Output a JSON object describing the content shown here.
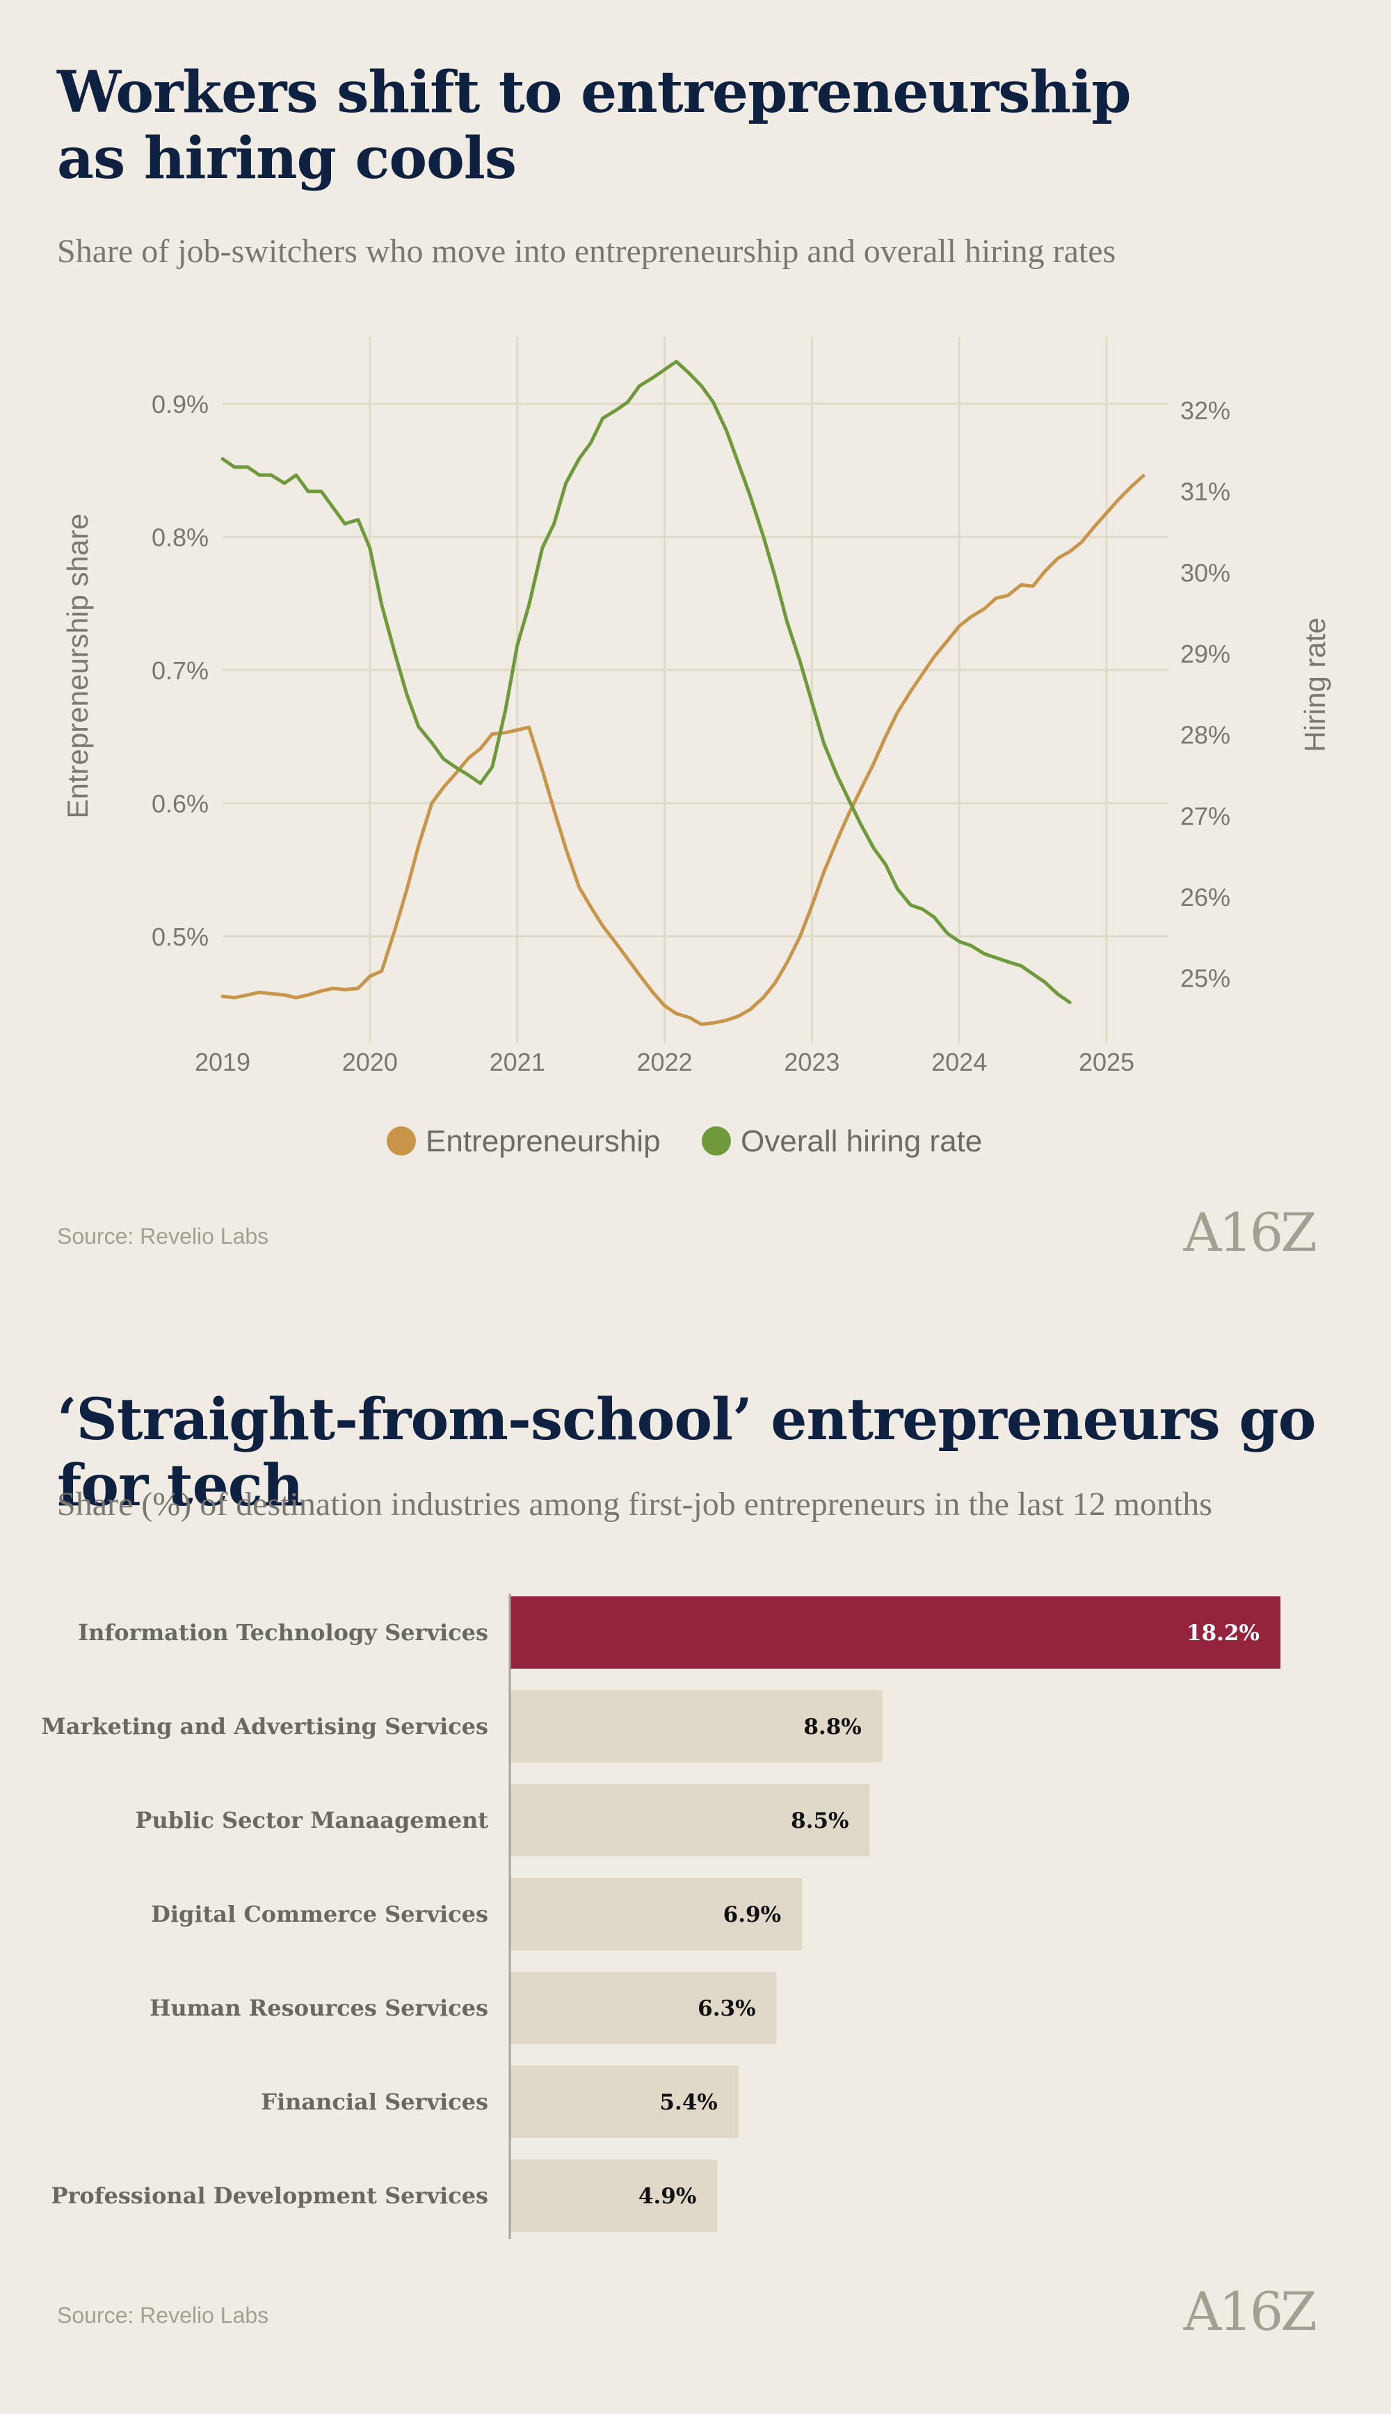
{
  "header": {
    "title1": "Workers shift to entrepreneurship as hiring cools",
    "subtitle1": "Share of job-switchers who move into entrepreneurship and overall hiring rates",
    "title2": "‘Straight-from-school’ entrepreneurs go for tech",
    "subtitle2": "Share (%) of destination industries among first-job entrepreneurs in the last 12 months"
  },
  "footer": {
    "source1": "Source: Revelio Labs",
    "source2": "Source: Revelio Labs",
    "logo": "A16Z"
  },
  "colors": {
    "entrepreneurship": "#c8964a",
    "hiring": "#6f9a3c",
    "highlight_bar": "#94243e",
    "bar": "#e0d8c8",
    "grid": "#e0d9c8"
  },
  "chart_data": [
    {
      "type": "line",
      "title": "Workers shift to entrepreneurship as hiring cools",
      "ylabel_left": "Entrepreneurship share",
      "ylabel_right": "Hiring rate",
      "x_ticks": [
        "2019",
        "2020",
        "2021",
        "2022",
        "2023",
        "2024",
        "2025"
      ],
      "y_left_ticks": [
        "0.5%",
        "0.6%",
        "0.7%",
        "0.8%",
        "0.9%"
      ],
      "y_right_ticks": [
        "25%",
        "26%",
        "27%",
        "28%",
        "29%",
        "30%",
        "31%",
        "32%"
      ],
      "ylim_left": [
        0.42,
        0.95
      ],
      "ylim_right": [
        24.2,
        32.9
      ],
      "legend": [
        "Entrepreneurship",
        "Overall hiring rate"
      ],
      "series": [
        {
          "name": "Entrepreneurship",
          "axis": "left",
          "points": [
            [
              2019.0,
              0.455
            ],
            [
              2019.08,
              0.454
            ],
            [
              2019.17,
              0.456
            ],
            [
              2019.25,
              0.458
            ],
            [
              2019.33,
              0.457
            ],
            [
              2019.42,
              0.456
            ],
            [
              2019.5,
              0.454
            ],
            [
              2019.58,
              0.456
            ],
            [
              2019.67,
              0.459
            ],
            [
              2019.75,
              0.461
            ],
            [
              2019.83,
              0.46
            ],
            [
              2019.92,
              0.461
            ],
            [
              2020.0,
              0.47
            ],
            [
              2020.08,
              0.474
            ],
            [
              2020.17,
              0.505
            ],
            [
              2020.25,
              0.535
            ],
            [
              2020.33,
              0.568
            ],
            [
              2020.42,
              0.6
            ],
            [
              2020.5,
              0.612
            ],
            [
              2020.58,
              0.622
            ],
            [
              2020.67,
              0.634
            ],
            [
              2020.75,
              0.641
            ],
            [
              2020.83,
              0.652
            ],
            [
              2020.92,
              0.653
            ],
            [
              2021.0,
              0.655
            ],
            [
              2021.08,
              0.657
            ],
            [
              2021.17,
              0.625
            ],
            [
              2021.25,
              0.595
            ],
            [
              2021.33,
              0.566
            ],
            [
              2021.42,
              0.537
            ],
            [
              2021.5,
              0.522
            ],
            [
              2021.58,
              0.508
            ],
            [
              2021.67,
              0.495
            ],
            [
              2021.75,
              0.483
            ],
            [
              2021.83,
              0.471
            ],
            [
              2021.92,
              0.458
            ],
            [
              2022.0,
              0.448
            ],
            [
              2022.08,
              0.442
            ],
            [
              2022.17,
              0.439
            ],
            [
              2022.25,
              0.434
            ],
            [
              2022.33,
              0.435
            ],
            [
              2022.42,
              0.437
            ],
            [
              2022.5,
              0.44
            ],
            [
              2022.58,
              0.445
            ],
            [
              2022.67,
              0.454
            ],
            [
              2022.75,
              0.465
            ],
            [
              2022.83,
              0.48
            ],
            [
              2022.92,
              0.5
            ],
            [
              2023.0,
              0.523
            ],
            [
              2023.08,
              0.548
            ],
            [
              2023.17,
              0.572
            ],
            [
              2023.25,
              0.592
            ],
            [
              2023.33,
              0.61
            ],
            [
              2023.42,
              0.63
            ],
            [
              2023.5,
              0.65
            ],
            [
              2023.58,
              0.668
            ],
            [
              2023.67,
              0.684
            ],
            [
              2023.75,
              0.697
            ],
            [
              2023.83,
              0.71
            ],
            [
              2023.92,
              0.722
            ],
            [
              2024.0,
              0.733
            ],
            [
              2024.08,
              0.74
            ],
            [
              2024.17,
              0.746
            ],
            [
              2024.25,
              0.754
            ],
            [
              2024.33,
              0.756
            ],
            [
              2024.42,
              0.764
            ],
            [
              2024.5,
              0.763
            ],
            [
              2024.58,
              0.774
            ],
            [
              2024.67,
              0.784
            ],
            [
              2024.75,
              0.789
            ],
            [
              2024.83,
              0.796
            ],
            [
              2024.92,
              0.808
            ],
            [
              2025.0,
              0.818
            ],
            [
              2025.08,
              0.828
            ],
            [
              2025.17,
              0.838
            ],
            [
              2025.25,
              0.846
            ]
          ]
        },
        {
          "name": "Overall hiring rate",
          "axis": "right",
          "points": [
            [
              2019.0,
              31.4
            ],
            [
              2019.08,
              31.3
            ],
            [
              2019.17,
              31.3
            ],
            [
              2019.25,
              31.2
            ],
            [
              2019.33,
              31.2
            ],
            [
              2019.42,
              31.1
            ],
            [
              2019.5,
              31.2
            ],
            [
              2019.58,
              31.0
            ],
            [
              2019.67,
              31.0
            ],
            [
              2019.75,
              30.8
            ],
            [
              2019.83,
              30.6
            ],
            [
              2019.92,
              30.65
            ],
            [
              2020.0,
              30.3
            ],
            [
              2020.08,
              29.6
            ],
            [
              2020.17,
              29.0
            ],
            [
              2020.25,
              28.5
            ],
            [
              2020.33,
              28.1
            ],
            [
              2020.42,
              27.9
            ],
            [
              2020.5,
              27.7
            ],
            [
              2020.58,
              27.6
            ],
            [
              2020.67,
              27.5
            ],
            [
              2020.75,
              27.4
            ],
            [
              2020.83,
              27.6
            ],
            [
              2020.92,
              28.3
            ],
            [
              2021.0,
              29.1
            ],
            [
              2021.08,
              29.6
            ],
            [
              2021.17,
              30.3
            ],
            [
              2021.25,
              30.6
            ],
            [
              2021.33,
              31.1
            ],
            [
              2021.42,
              31.4
            ],
            [
              2021.5,
              31.6
            ],
            [
              2021.58,
              31.9
            ],
            [
              2021.67,
              32.0
            ],
            [
              2021.75,
              32.1
            ],
            [
              2021.83,
              32.3
            ],
            [
              2021.92,
              32.4
            ],
            [
              2022.0,
              32.5
            ],
            [
              2022.08,
              32.6
            ],
            [
              2022.17,
              32.45
            ],
            [
              2022.25,
              32.3
            ],
            [
              2022.33,
              32.1
            ],
            [
              2022.42,
              31.75
            ],
            [
              2022.5,
              31.35
            ],
            [
              2022.58,
              30.95
            ],
            [
              2022.67,
              30.45
            ],
            [
              2022.75,
              29.95
            ],
            [
              2022.83,
              29.4
            ],
            [
              2022.92,
              28.9
            ],
            [
              2023.0,
              28.4
            ],
            [
              2023.08,
              27.9
            ],
            [
              2023.17,
              27.5
            ],
            [
              2023.25,
              27.2
            ],
            [
              2023.33,
              26.9
            ],
            [
              2023.42,
              26.6
            ],
            [
              2023.5,
              26.4
            ],
            [
              2023.58,
              26.1
            ],
            [
              2023.67,
              25.9
            ],
            [
              2023.75,
              25.85
            ],
            [
              2023.83,
              25.75
            ],
            [
              2023.92,
              25.55
            ],
            [
              2024.0,
              25.45
            ],
            [
              2024.08,
              25.4
            ],
            [
              2024.17,
              25.3
            ],
            [
              2024.25,
              25.25
            ],
            [
              2024.33,
              25.2
            ],
            [
              2024.42,
              25.15
            ],
            [
              2024.5,
              25.05
            ],
            [
              2024.58,
              24.95
            ],
            [
              2024.67,
              24.8
            ],
            [
              2024.75,
              24.7
            ]
          ]
        }
      ]
    },
    {
      "type": "bar",
      "orientation": "horizontal",
      "title": "‘Straight-from-school’ entrepreneurs go for tech",
      "unit": "%",
      "categories": [
        "Information Technology Services",
        "Marketing and Advertising Services",
        "Public Sector Manaagement",
        "Digital Commerce Services",
        "Human Resources Services",
        "Financial Services",
        "Professional Development Services"
      ],
      "values": [
        18.2,
        8.8,
        8.5,
        6.9,
        6.3,
        5.4,
        4.9
      ],
      "labels": [
        "18.2%",
        "8.8%",
        "8.5%",
        "6.9%",
        "6.3%",
        "5.4%",
        "4.9%"
      ],
      "highlight_index": 0,
      "xlim": [
        0,
        18.2
      ]
    }
  ]
}
